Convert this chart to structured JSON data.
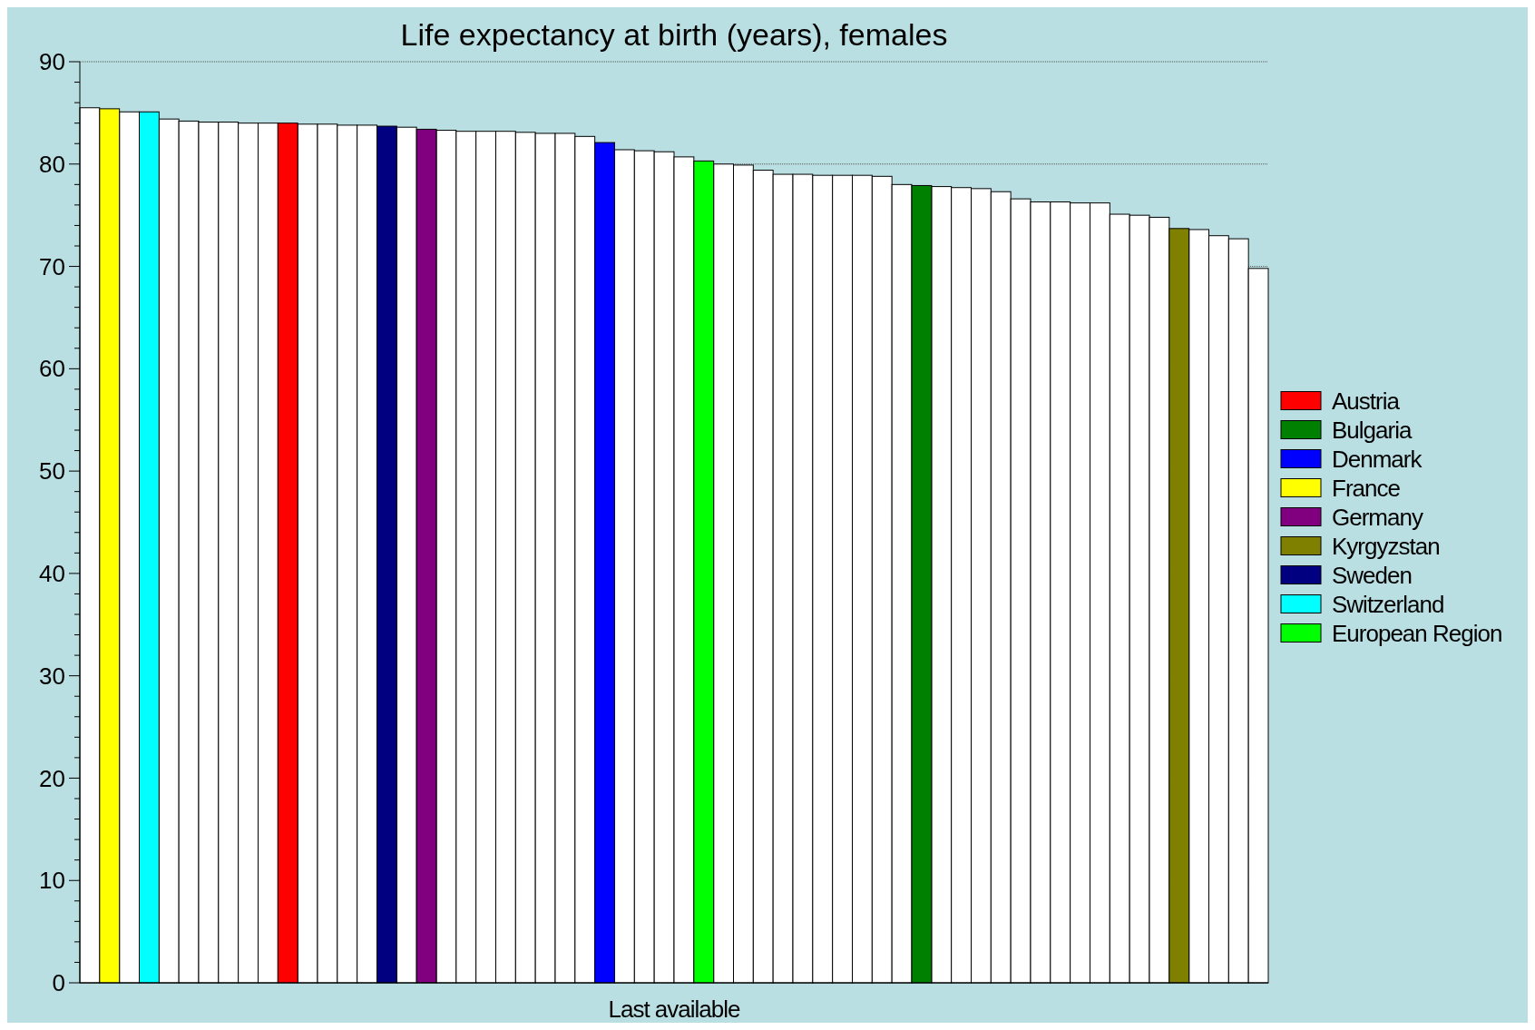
{
  "chart_data": {
    "type": "bar",
    "title": "Life expectancy at birth (years), females",
    "xlabel": "Last available",
    "stacked": true,
    "grid": "y",
    "legend": "right",
    "categories": [
      null,
      null,
      null,
      null,
      null,
      null,
      null,
      null,
      null,
      null,
      null,
      null,
      null,
      null,
      null,
      null,
      null,
      null,
      null,
      null,
      null,
      null,
      null,
      null,
      null,
      null,
      null,
      null,
      null,
      null,
      null,
      null,
      null,
      null,
      null,
      null,
      null,
      null,
      null,
      null,
      null,
      null,
      null,
      null,
      null,
      null,
      null,
      null,
      null,
      null,
      null,
      null,
      null,
      null,
      null,
      null,
      null,
      null,
      null,
      null
    ],
    "ylim": [
      0,
      90
    ],
    "yticks": [
      0,
      {
        "value": 2,
        "label": null
      },
      {
        "value": 4,
        "label": null
      },
      {
        "value": 6,
        "label": null
      },
      {
        "value": 8,
        "label": null
      },
      10,
      {
        "value": 12,
        "label": null
      },
      {
        "value": 14,
        "label": null
      },
      {
        "value": 16,
        "label": null
      },
      {
        "value": 18,
        "label": null
      },
      20,
      {
        "value": 22,
        "label": null
      },
      {
        "value": 24,
        "label": null
      },
      {
        "value": 26,
        "label": null
      },
      {
        "value": 28,
        "label": null
      },
      30,
      {
        "value": 32,
        "label": null
      },
      {
        "value": 34,
        "label": null
      },
      {
        "value": 36,
        "label": null
      },
      {
        "value": 38,
        "label": null
      },
      40,
      {
        "value": 42,
        "label": null
      },
      {
        "value": 44,
        "label": null
      },
      {
        "value": 46,
        "label": null
      },
      {
        "value": 48,
        "label": null
      },
      50,
      {
        "value": 52,
        "label": null
      },
      {
        "value": 54,
        "label": null
      },
      {
        "value": 56,
        "label": null
      },
      {
        "value": 58,
        "label": null
      },
      60,
      {
        "value": 62,
        "label": null
      },
      {
        "value": 64,
        "label": null
      },
      {
        "value": 66,
        "label": null
      },
      {
        "value": 68,
        "label": null
      },
      70,
      {
        "value": 72,
        "label": null
      },
      {
        "value": 74,
        "label": null
      },
      {
        "value": 76,
        "label": null
      },
      {
        "value": 78,
        "label": null
      },
      80,
      {
        "value": 82,
        "label": null
      },
      {
        "value": 84,
        "label": null
      },
      {
        "value": 86,
        "label": null
      },
      {
        "value": 88,
        "label": null
      },
      90
    ],
    "series": [
      {
        "color": "#ffffff",
        "values": [
          85.5,
          null,
          85.1,
          null,
          84.4,
          84.2,
          84.1,
          84.1,
          84.0,
          84.0,
          null,
          83.9,
          83.9,
          83.8,
          83.8,
          null,
          83.6,
          null,
          83.3,
          83.2,
          83.2,
          83.2,
          83.1,
          83.0,
          83.0,
          82.7,
          null,
          81.4,
          81.3,
          81.2,
          80.7,
          null,
          80.0,
          79.9,
          79.4,
          79.0,
          79.0,
          78.9,
          78.9,
          78.9,
          78.8,
          78.0,
          null,
          77.8,
          77.7,
          77.6,
          77.3,
          76.6,
          76.3,
          76.3,
          76.2,
          76.2,
          75.1,
          75.0,
          74.8,
          null,
          73.6,
          73.0,
          72.7,
          69.8
        ]
      },
      {
        "name": "Austria",
        "color": "#ff0000",
        "values": [
          null,
          null,
          null,
          null,
          null,
          null,
          null,
          null,
          null,
          null,
          84.0,
          null,
          null,
          null,
          null,
          null,
          null,
          null,
          null,
          null,
          null,
          null,
          null,
          null,
          null,
          null,
          null,
          null,
          null,
          null,
          null,
          null,
          null,
          null,
          null,
          null,
          null,
          null,
          null,
          null,
          null,
          null,
          null,
          null,
          null,
          null,
          null,
          null,
          null,
          null,
          null,
          null,
          null,
          null,
          null,
          null,
          null,
          null,
          null,
          null
        ]
      },
      {
        "name": "Bulgaria",
        "color": "#008000",
        "values": [
          null,
          null,
          null,
          null,
          null,
          null,
          null,
          null,
          null,
          null,
          null,
          null,
          null,
          null,
          null,
          null,
          null,
          null,
          null,
          null,
          null,
          null,
          null,
          null,
          null,
          null,
          null,
          null,
          null,
          null,
          null,
          null,
          null,
          null,
          null,
          null,
          null,
          null,
          null,
          null,
          null,
          null,
          77.9,
          null,
          null,
          null,
          null,
          null,
          null,
          null,
          null,
          null,
          null,
          null,
          null,
          null,
          null,
          null,
          null,
          null
        ]
      },
      {
        "name": "Denmark",
        "color": "#0000ff",
        "values": [
          null,
          null,
          null,
          null,
          null,
          null,
          null,
          null,
          null,
          null,
          null,
          null,
          null,
          null,
          null,
          null,
          null,
          null,
          null,
          null,
          null,
          null,
          null,
          null,
          null,
          null,
          82.1,
          null,
          null,
          null,
          null,
          null,
          null,
          null,
          null,
          null,
          null,
          null,
          null,
          null,
          null,
          null,
          null,
          null,
          null,
          null,
          null,
          null,
          null,
          null,
          null,
          null,
          null,
          null,
          null,
          null,
          null,
          null,
          null,
          null
        ]
      },
      {
        "name": "France",
        "color": "#ffff00",
        "values": [
          null,
          85.4,
          null,
          null,
          null,
          null,
          null,
          null,
          null,
          null,
          null,
          null,
          null,
          null,
          null,
          null,
          null,
          null,
          null,
          null,
          null,
          null,
          null,
          null,
          null,
          null,
          null,
          null,
          null,
          null,
          null,
          null,
          null,
          null,
          null,
          null,
          null,
          null,
          null,
          null,
          null,
          null,
          null,
          null,
          null,
          null,
          null,
          null,
          null,
          null,
          null,
          null,
          null,
          null,
          null,
          null,
          null,
          null,
          null,
          null
        ]
      },
      {
        "name": "Germany",
        "color": "#800080",
        "values": [
          null,
          null,
          null,
          null,
          null,
          null,
          null,
          null,
          null,
          null,
          null,
          null,
          null,
          null,
          null,
          null,
          null,
          83.4,
          null,
          null,
          null,
          null,
          null,
          null,
          null,
          null,
          null,
          null,
          null,
          null,
          null,
          null,
          null,
          null,
          null,
          null,
          null,
          null,
          null,
          null,
          null,
          null,
          null,
          null,
          null,
          null,
          null,
          null,
          null,
          null,
          null,
          null,
          null,
          null,
          null,
          null,
          null,
          null,
          null,
          null
        ]
      },
      {
        "name": "Kyrgyzstan",
        "color": "#808000",
        "values": [
          null,
          null,
          null,
          null,
          null,
          null,
          null,
          null,
          null,
          null,
          null,
          null,
          null,
          null,
          null,
          null,
          null,
          null,
          null,
          null,
          null,
          null,
          null,
          null,
          null,
          null,
          null,
          null,
          null,
          null,
          null,
          null,
          null,
          null,
          null,
          null,
          null,
          null,
          null,
          null,
          null,
          null,
          null,
          null,
          null,
          null,
          null,
          null,
          null,
          null,
          null,
          null,
          null,
          null,
          null,
          73.7,
          null,
          null,
          null,
          null
        ]
      },
      {
        "name": "Sweden",
        "color": "#000080",
        "values": [
          null,
          null,
          null,
          null,
          null,
          null,
          null,
          null,
          null,
          null,
          null,
          null,
          null,
          null,
          null,
          83.7,
          null,
          null,
          null,
          null,
          null,
          null,
          null,
          null,
          null,
          null,
          null,
          null,
          null,
          null,
          null,
          null,
          null,
          null,
          null,
          null,
          null,
          null,
          null,
          null,
          null,
          null,
          null,
          null,
          null,
          null,
          null,
          null,
          null,
          null,
          null,
          null,
          null,
          null,
          null,
          null,
          null,
          null,
          null,
          null
        ]
      },
      {
        "name": "Switzerland",
        "color": "#00ffff",
        "values": [
          null,
          null,
          null,
          85.1,
          null,
          null,
          null,
          null,
          null,
          null,
          null,
          null,
          null,
          null,
          null,
          null,
          null,
          null,
          null,
          null,
          null,
          null,
          null,
          null,
          null,
          null,
          null,
          null,
          null,
          null,
          null,
          null,
          null,
          null,
          null,
          null,
          null,
          null,
          null,
          null,
          null,
          null,
          null,
          null,
          null,
          null,
          null,
          null,
          null,
          null,
          null,
          null,
          null,
          null,
          null,
          null,
          null,
          null,
          null,
          null
        ]
      },
      {
        "name": "European Region",
        "color": "#00ff00",
        "values": [
          null,
          null,
          null,
          null,
          null,
          null,
          null,
          null,
          null,
          null,
          null,
          null,
          null,
          null,
          null,
          null,
          null,
          null,
          null,
          null,
          null,
          null,
          null,
          null,
          null,
          null,
          null,
          null,
          null,
          null,
          null,
          80.3,
          null,
          null,
          null,
          null,
          null,
          null,
          null,
          null,
          null,
          null,
          null,
          null,
          null,
          null,
          null,
          null,
          null,
          null,
          null,
          null,
          null,
          null,
          null,
          null,
          null,
          null,
          null,
          null
        ]
      }
    ]
  }
}
